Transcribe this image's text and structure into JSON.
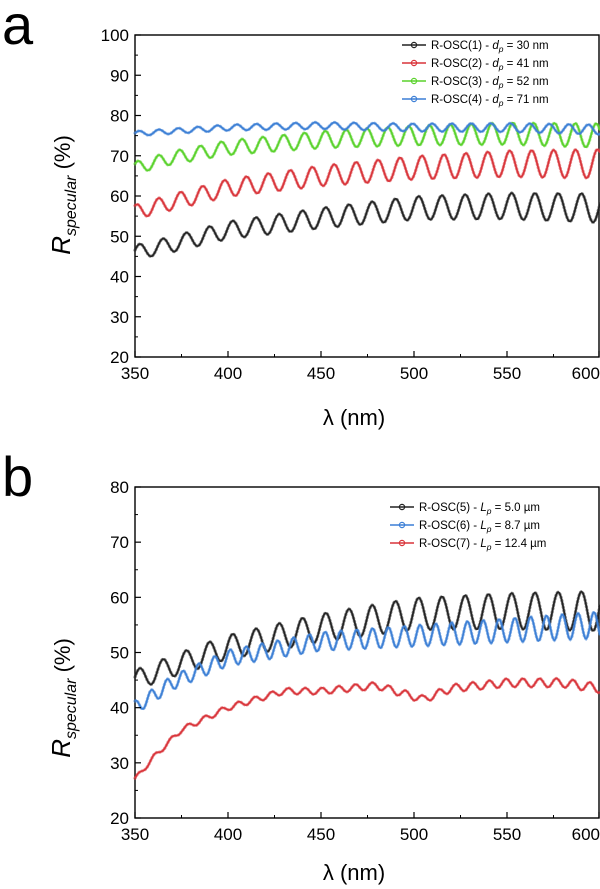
{
  "figure": {
    "panels": [
      "a",
      "b"
    ]
  },
  "chart_data": [
    {
      "panel": "a",
      "type": "line",
      "xlabel_symbol": "λ",
      "xlabel": "λ (nm)",
      "xlabel_unit": " (nm)",
      "ylabel_main": "R",
      "ylabel_sub": "specular",
      "ylabel_unit": " (%)",
      "xlim": [
        350,
        600
      ],
      "ylim": [
        20,
        100
      ],
      "xticks": [
        350,
        400,
        450,
        500,
        550,
        600
      ],
      "yticks": [
        20,
        30,
        40,
        50,
        60,
        70,
        80,
        90,
        100
      ],
      "legend_position": "top-right",
      "series": [
        {
          "name": "R-OSC(1) - dp = 30 nm",
          "label_prefix": "R-OSC(1) - ",
          "label_var": "d",
          "label_sub": "p",
          "label_suffix": " = 30 nm",
          "color": "#222222",
          "base_points": [
            [
              350,
              46
            ],
            [
              370,
              48
            ],
            [
              400,
              51.5
            ],
            [
              450,
              54.5
            ],
            [
              500,
              57
            ],
            [
              550,
              57.5
            ],
            [
              600,
              57
            ]
          ],
          "amplitude": 3,
          "period": 12.5,
          "phase": 0.3
        },
        {
          "name": "R-OSC(2) - dp = 41 nm",
          "label_prefix": "R-OSC(2) - ",
          "label_var": "d",
          "label_sub": "p",
          "label_suffix": " = 41 nm",
          "color": "#d9343a",
          "base_points": [
            [
              350,
              56
            ],
            [
              370,
              58.5
            ],
            [
              400,
              62
            ],
            [
              450,
              65
            ],
            [
              500,
              67
            ],
            [
              550,
              68
            ],
            [
              600,
              68
            ]
          ],
          "amplitude": 3,
          "period": 11.8,
          "phase": 1.1
        },
        {
          "name": "R-OSC(3) - dp = 52 nm",
          "label_prefix": "R-OSC(3) - ",
          "label_var": "d",
          "label_sub": "p",
          "label_suffix": " = 52 nm",
          "color": "#5ad22c",
          "base_points": [
            [
              350,
              67
            ],
            [
              370,
              69.5
            ],
            [
              400,
              72
            ],
            [
              450,
              74
            ],
            [
              500,
              75
            ],
            [
              550,
              75.5
            ],
            [
              600,
              75
            ]
          ],
          "amplitude": 2.5,
          "period": 11.2,
          "phase": 0.7
        },
        {
          "name": "R-OSC(4) - dp = 71 nm",
          "label_prefix": "R-OSC(4) - ",
          "label_var": "d",
          "label_sub": "p",
          "label_suffix": " = 71 nm",
          "color": "#3c7fd6",
          "base_points": [
            [
              350,
              75.5
            ],
            [
              400,
              77
            ],
            [
              450,
              77.5
            ],
            [
              500,
              77
            ],
            [
              550,
              77
            ],
            [
              600,
              76.5
            ]
          ],
          "amplitude": 1,
          "period": 10.5,
          "phase": 0.2
        }
      ]
    },
    {
      "panel": "b",
      "type": "line",
      "xlabel_symbol": "λ",
      "xlabel": "λ (nm)",
      "xlabel_unit": " (nm)",
      "ylabel_main": "R",
      "ylabel_sub": "specular",
      "ylabel_unit": " (%)",
      "xlim": [
        350,
        600
      ],
      "ylim": [
        20,
        80
      ],
      "xticks": [
        350,
        400,
        450,
        500,
        550,
        600
      ],
      "yticks": [
        20,
        30,
        40,
        50,
        60,
        70,
        80
      ],
      "legend_position": "top-right",
      "series": [
        {
          "name": "R-OSC(5) - Lp = 5.0 µm",
          "label_prefix": "R-OSC(5) - ",
          "label_var": "L",
          "label_sub": "p",
          "label_suffix": " = 5.0 µm",
          "color": "#222222",
          "base_points": [
            [
              350,
              45
            ],
            [
              370,
              47.5
            ],
            [
              400,
              51
            ],
            [
              450,
              54.5
            ],
            [
              500,
              57
            ],
            [
              550,
              57.5
            ],
            [
              600,
              57.5
            ]
          ],
          "amplitude": 3,
          "period": 12.5,
          "phase": 0.3
        },
        {
          "name": "R-OSC(6) - Lp = 8.7 µm",
          "label_prefix": "R-OSC(6) - ",
          "label_var": "L",
          "label_sub": "p",
          "label_suffix": " = 8.7 µm",
          "color": "#3c7fd6",
          "base_points": [
            [
              350,
              40
            ],
            [
              370,
              44.5
            ],
            [
              400,
              49
            ],
            [
              450,
              52
            ],
            [
              500,
              53
            ],
            [
              550,
              54
            ],
            [
              600,
              55
            ]
          ],
          "amplitude": 2,
          "period": 8.5,
          "phase": 1.4
        },
        {
          "name": "R-OSC(7) - Lp = 12.4 µm",
          "label_prefix": "R-OSC(7) - ",
          "label_var": "L",
          "label_sub": "p",
          "label_suffix": " = 12.4 µm",
          "color": "#d9343a",
          "base_points": [
            [
              350,
              27
            ],
            [
              360,
              31
            ],
            [
              375,
              36
            ],
            [
              400,
              40
            ],
            [
              430,
              43
            ],
            [
              450,
              43
            ],
            [
              480,
              44
            ],
            [
              495,
              42.5
            ],
            [
              505,
              41.5
            ],
            [
              520,
              43.5
            ],
            [
              550,
              44.5
            ],
            [
              580,
              44.5
            ],
            [
              600,
              43.5
            ]
          ],
          "amplitude": 0.7,
          "period": 9,
          "phase": 0.5
        }
      ]
    }
  ]
}
